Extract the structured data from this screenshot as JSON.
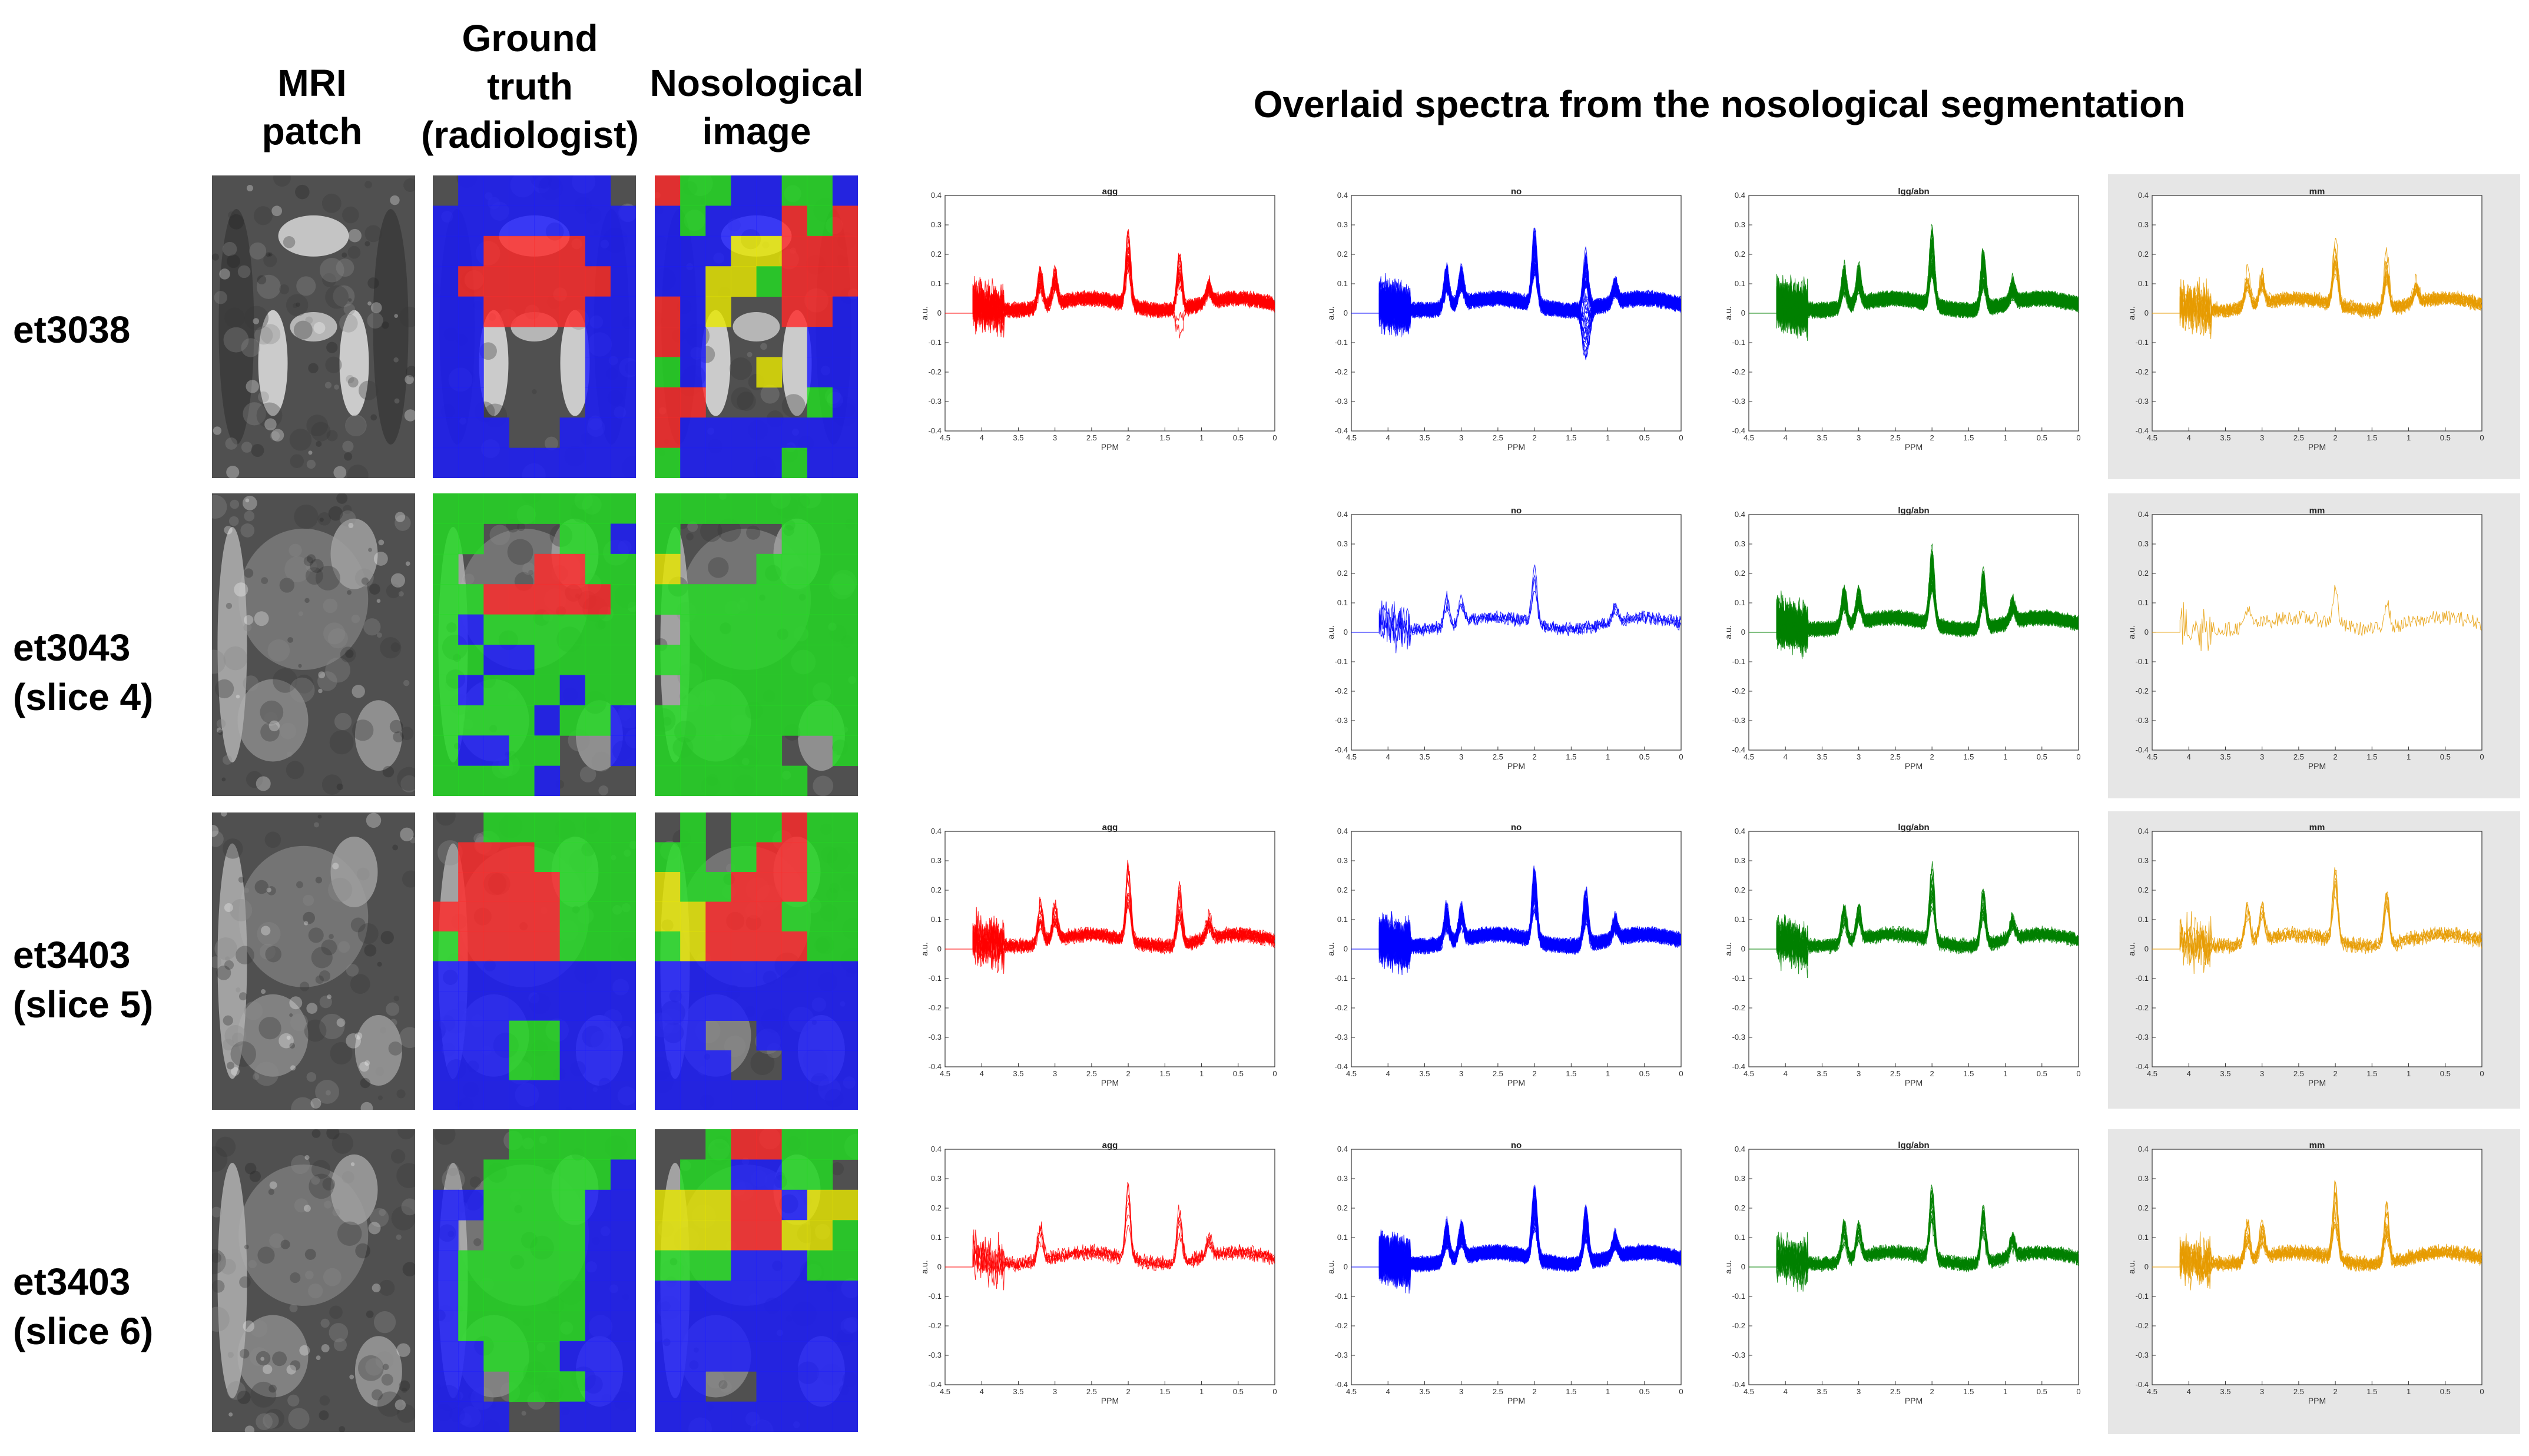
{
  "headers": {
    "mri": [
      "MRI",
      "patch"
    ],
    "ground_truth": [
      "Ground",
      "truth",
      "(radiologist)"
    ],
    "nosological": [
      "Nosological",
      "image"
    ]
  },
  "main_title": "Overlaid spectra from the nosological  segmentation",
  "rows": [
    {
      "label": [
        "et3038"
      ]
    },
    {
      "label": [
        "et3043",
        "(slice 4)"
      ]
    },
    {
      "label": [
        "et3403",
        "(slice 5)"
      ]
    },
    {
      "label": [
        "et3403",
        "(slice 6)"
      ]
    }
  ],
  "class_colors": {
    "agg": "#ff0000",
    "no": "#0000ff",
    "lgg/abn": "#008000",
    "mm": "#e69b00"
  },
  "segmentation_colors": {
    "red": "#ff2a2a",
    "blue": "#1b1bff",
    "green": "#22dd22",
    "yellow": "#e6e600"
  },
  "chart_data": [
    {
      "type": "line",
      "row": 0,
      "title": "agg",
      "xlabel": "PPM",
      "ylabel": "a.u.",
      "xlim": [
        4.5,
        0
      ],
      "ylim": [
        -0.4,
        0.4
      ],
      "n_spectra": 24,
      "peaks_ppm": [
        3.2,
        3.0,
        2.0,
        1.3,
        0.9
      ],
      "xticks": [
        "4.5",
        "4",
        "3.5",
        "3",
        "2.5",
        "2",
        "1.5",
        "1",
        "0.5",
        "0"
      ],
      "yticks": [
        "0.4",
        "0.3",
        "0.2",
        "0.1",
        "0",
        "-0.1",
        "-0.2",
        "-0.3",
        "-0.4"
      ]
    },
    {
      "type": "line",
      "row": 0,
      "title": "no",
      "xlabel": "PPM",
      "ylabel": "a.u.",
      "xlim": [
        4.5,
        0
      ],
      "ylim": [
        -0.4,
        0.4
      ],
      "n_spectra": 60,
      "peaks_ppm": [
        3.2,
        3.0,
        2.0,
        1.3,
        0.9
      ],
      "xticks": [
        "4.5",
        "4",
        "3.5",
        "3",
        "2.5",
        "2",
        "1.5",
        "1",
        "0.5",
        "0"
      ],
      "yticks": [
        "0.4",
        "0.3",
        "0.2",
        "0.1",
        "0",
        "-0.1",
        "-0.2",
        "-0.3",
        "-0.4"
      ]
    },
    {
      "type": "line",
      "row": 0,
      "title": "lgg/abn",
      "xlabel": "PPM",
      "ylabel": "a.u.",
      "xlim": [
        4.5,
        0
      ],
      "ylim": [
        -0.4,
        0.4
      ],
      "n_spectra": 50,
      "peaks_ppm": [
        3.2,
        3.0,
        2.0,
        1.3,
        0.9
      ],
      "xticks": [
        "4.5",
        "4",
        "3.5",
        "3",
        "2.5",
        "2",
        "1.5",
        "1",
        "0.5",
        "0"
      ],
      "yticks": [
        "0.4",
        "0.3",
        "0.2",
        "0.1",
        "0",
        "-0.1",
        "-0.2",
        "-0.3",
        "-0.4"
      ]
    },
    {
      "type": "line",
      "row": 0,
      "title": "mm",
      "xlabel": "PPM",
      "ylabel": "a.u.",
      "xlim": [
        4.5,
        0
      ],
      "ylim": [
        -0.4,
        0.4
      ],
      "n_spectra": 12,
      "peaks_ppm": [
        3.2,
        3.0,
        2.0,
        1.3,
        0.9
      ],
      "xticks": [
        "4.5",
        "4",
        "3.5",
        "3",
        "2.5",
        "2",
        "1.5",
        "1",
        "0.5",
        "0"
      ],
      "yticks": [
        "0.4",
        "0.3",
        "0.2",
        "0.1",
        "0",
        "-0.1",
        "-0.2",
        "-0.3",
        "-0.4"
      ]
    },
    {
      "type": "line",
      "row": 1,
      "title": "no",
      "xlabel": "PPM",
      "ylabel": "a.u.",
      "xlim": [
        4.5,
        0
      ],
      "ylim": [
        -0.4,
        0.4
      ],
      "n_spectra": 4,
      "peaks_ppm": [
        3.2,
        3.0,
        2.0,
        0.9
      ],
      "xticks": [
        "4.5",
        "4",
        "3.5",
        "3",
        "2.5",
        "2",
        "1.5",
        "1",
        "0.5",
        "0"
      ],
      "yticks": [
        "0.4",
        "0.3",
        "0.2",
        "0.1",
        "0",
        "-0.1",
        "-0.2",
        "-0.3",
        "-0.4"
      ]
    },
    {
      "type": "line",
      "row": 1,
      "title": "lgg/abn",
      "xlabel": "PPM",
      "ylabel": "a.u.",
      "xlim": [
        4.5,
        0
      ],
      "ylim": [
        -0.4,
        0.4
      ],
      "n_spectra": 60,
      "peaks_ppm": [
        3.2,
        3.0,
        2.0,
        1.3,
        0.9
      ],
      "xticks": [
        "4.5",
        "4",
        "3.5",
        "3",
        "2.5",
        "2",
        "1.5",
        "1",
        "0.5",
        "0"
      ],
      "yticks": [
        "0.4",
        "0.3",
        "0.2",
        "0.1",
        "0",
        "-0.1",
        "-0.2",
        "-0.3",
        "-0.4"
      ]
    },
    {
      "type": "line",
      "row": 1,
      "title": "mm",
      "xlabel": "PPM",
      "ylabel": "a.u.",
      "xlim": [
        4.5,
        0
      ],
      "ylim": [
        -0.4,
        0.4
      ],
      "n_spectra": 1,
      "peaks_ppm": [
        3.2,
        2.0,
        1.3
      ],
      "xticks": [
        "4.5",
        "4",
        "3.5",
        "3",
        "2.5",
        "2",
        "1.5",
        "1",
        "0.5",
        "0"
      ],
      "yticks": [
        "0.4",
        "0.3",
        "0.2",
        "0.1",
        "0",
        "-0.1",
        "-0.2",
        "-0.3",
        "-0.4"
      ]
    },
    {
      "type": "line",
      "row": 2,
      "title": "agg",
      "xlabel": "PPM",
      "ylabel": "a.u.",
      "xlim": [
        4.5,
        0
      ],
      "ylim": [
        -0.4,
        0.4
      ],
      "n_spectra": 14,
      "peaks_ppm": [
        3.2,
        3.0,
        2.0,
        1.3,
        0.9
      ],
      "xticks": [
        "4.5",
        "4",
        "3.5",
        "3",
        "2.5",
        "2",
        "1.5",
        "1",
        "0.5",
        "0"
      ],
      "yticks": [
        "0.4",
        "0.3",
        "0.2",
        "0.1",
        "0",
        "-0.1",
        "-0.2",
        "-0.3",
        "-0.4"
      ]
    },
    {
      "type": "line",
      "row": 2,
      "title": "no",
      "xlabel": "PPM",
      "ylabel": "a.u.",
      "xlim": [
        4.5,
        0
      ],
      "ylim": [
        -0.4,
        0.4
      ],
      "n_spectra": 50,
      "peaks_ppm": [
        3.2,
        3.0,
        2.0,
        1.3,
        0.9
      ],
      "xticks": [
        "4.5",
        "4",
        "3.5",
        "3",
        "2.5",
        "2",
        "1.5",
        "1",
        "0.5",
        "0"
      ],
      "yticks": [
        "0.4",
        "0.3",
        "0.2",
        "0.1",
        "0",
        "-0.1",
        "-0.2",
        "-0.3",
        "-0.4"
      ]
    },
    {
      "type": "line",
      "row": 2,
      "title": "lgg/abn",
      "xlabel": "PPM",
      "ylabel": "a.u.",
      "xlim": [
        4.5,
        0
      ],
      "ylim": [
        -0.4,
        0.4
      ],
      "n_spectra": 22,
      "peaks_ppm": [
        3.2,
        3.0,
        2.0,
        1.3,
        0.9
      ],
      "xticks": [
        "4.5",
        "4",
        "3.5",
        "3",
        "2.5",
        "2",
        "1.5",
        "1",
        "0.5",
        "0"
      ],
      "yticks": [
        "0.4",
        "0.3",
        "0.2",
        "0.1",
        "0",
        "-0.1",
        "-0.2",
        "-0.3",
        "-0.4"
      ]
    },
    {
      "type": "line",
      "row": 2,
      "title": "mm",
      "xlabel": "PPM",
      "ylabel": "a.u.",
      "xlim": [
        4.5,
        0
      ],
      "ylim": [
        -0.4,
        0.4
      ],
      "n_spectra": 6,
      "peaks_ppm": [
        3.2,
        3.0,
        2.0,
        1.3
      ],
      "xticks": [
        "4.5",
        "4",
        "3.5",
        "3",
        "2.5",
        "2",
        "1.5",
        "1",
        "0.5",
        "0"
      ],
      "yticks": [
        "0.4",
        "0.3",
        "0.2",
        "0.1",
        "0",
        "-0.1",
        "-0.2",
        "-0.3",
        "-0.4"
      ]
    },
    {
      "type": "line",
      "row": 3,
      "title": "agg",
      "xlabel": "PPM",
      "ylabel": "a.u.",
      "xlim": [
        4.5,
        0
      ],
      "ylim": [
        -0.4,
        0.4
      ],
      "n_spectra": 6,
      "peaks_ppm": [
        3.2,
        2.0,
        1.3,
        0.9
      ],
      "xticks": [
        "4.5",
        "4",
        "3.5",
        "3",
        "2.5",
        "2",
        "1.5",
        "1",
        "0.5",
        "0"
      ],
      "yticks": [
        "0.4",
        "0.3",
        "0.2",
        "0.1",
        "0",
        "-0.1",
        "-0.2",
        "-0.3",
        "-0.4"
      ]
    },
    {
      "type": "line",
      "row": 3,
      "title": "no",
      "xlabel": "PPM",
      "ylabel": "a.u.",
      "xlim": [
        4.5,
        0
      ],
      "ylim": [
        -0.4,
        0.4
      ],
      "n_spectra": 50,
      "peaks_ppm": [
        3.2,
        3.0,
        2.0,
        1.3,
        0.9
      ],
      "xticks": [
        "4.5",
        "4",
        "3.5",
        "3",
        "2.5",
        "2",
        "1.5",
        "1",
        "0.5",
        "0"
      ],
      "yticks": [
        "0.4",
        "0.3",
        "0.2",
        "0.1",
        "0",
        "-0.1",
        "-0.2",
        "-0.3",
        "-0.4"
      ]
    },
    {
      "type": "line",
      "row": 3,
      "title": "lgg/abn",
      "xlabel": "PPM",
      "ylabel": "a.u.",
      "xlim": [
        4.5,
        0
      ],
      "ylim": [
        -0.4,
        0.4
      ],
      "n_spectra": 22,
      "peaks_ppm": [
        3.2,
        3.0,
        2.0,
        1.3,
        0.9
      ],
      "xticks": [
        "4.5",
        "4",
        "3.5",
        "3",
        "2.5",
        "2",
        "1.5",
        "1",
        "0.5",
        "0"
      ],
      "yticks": [
        "0.4",
        "0.3",
        "0.2",
        "0.1",
        "0",
        "-0.1",
        "-0.2",
        "-0.3",
        "-0.4"
      ]
    },
    {
      "type": "line",
      "row": 3,
      "title": "mm",
      "xlabel": "PPM",
      "ylabel": "a.u.",
      "xlim": [
        4.5,
        0
      ],
      "ylim": [
        -0.4,
        0.4
      ],
      "n_spectra": 12,
      "peaks_ppm": [
        3.2,
        3.0,
        2.0,
        1.3
      ],
      "xticks": [
        "4.5",
        "4",
        "3.5",
        "3",
        "2.5",
        "2",
        "1.5",
        "1",
        "0.5",
        "0"
      ],
      "yticks": [
        "0.4",
        "0.3",
        "0.2",
        "0.1",
        "0",
        "-0.1",
        "-0.2",
        "-0.3",
        "-0.4"
      ]
    }
  ]
}
